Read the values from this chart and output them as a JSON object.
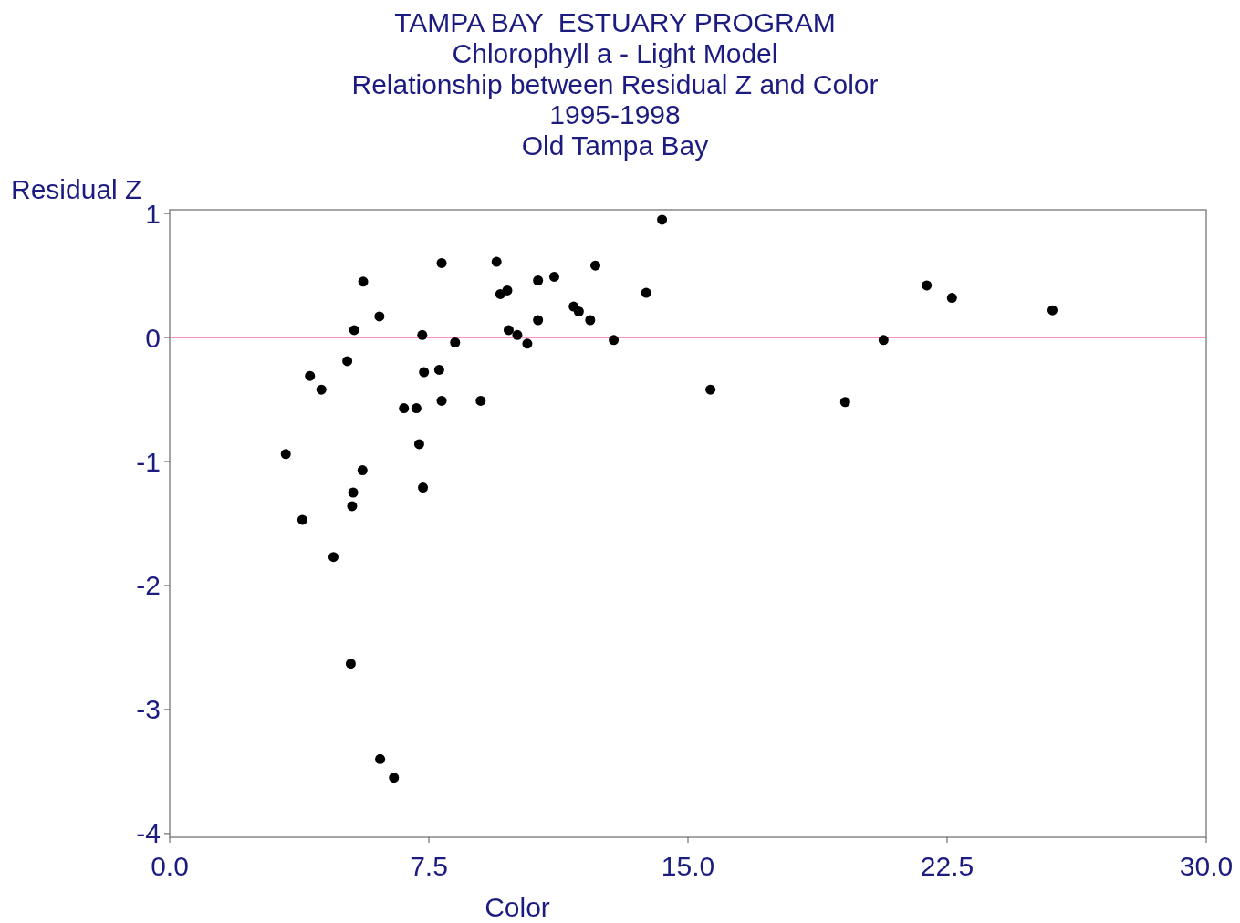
{
  "chart_data": {
    "type": "scatter",
    "title": "TAMPA BAY  ESTUARY PROGRAM",
    "subtitle": "Chlorophyll a - Light Model\nRelationship between Residual Z and Color\n1995-1998\nOld Tampa Bay",
    "xlabel": "Color",
    "ylabel": "Residual Z",
    "x": [
      14.25,
      7.87,
      9.46,
      5.6,
      12.32,
      10.66,
      11.13,
      9.57,
      9.77,
      13.79,
      6.07,
      11.69,
      11.84,
      10.66,
      12.17,
      5.34,
      7.31,
      9.81,
      10.06,
      8.26,
      10.35,
      12.85,
      5.14,
      4.06,
      4.39,
      7.36,
      7.8,
      7.87,
      9.0,
      6.78,
      7.14,
      3.36,
      7.22,
      5.58,
      5.31,
      5.28,
      7.33,
      3.84,
      4.74,
      5.24,
      6.09,
      6.49,
      15.65,
      19.55,
      20.66,
      21.91,
      22.64,
      25.55
    ],
    "series": [
      {
        "color": "#000000",
        "values": [
          0.95,
          0.6,
          0.61,
          0.45,
          0.58,
          0.46,
          0.49,
          0.35,
          0.38,
          0.36,
          0.17,
          0.25,
          0.21,
          0.14,
          0.14,
          0.06,
          0.02,
          0.06,
          0.02,
          -0.04,
          -0.05,
          -0.02,
          -0.19,
          -0.31,
          -0.42,
          -0.28,
          -0.26,
          -0.51,
          -0.51,
          -0.57,
          -0.57,
          -0.94,
          -0.86,
          -1.07,
          -1.25,
          -1.36,
          -1.21,
          -1.47,
          -1.77,
          -2.63,
          -3.4,
          -3.55,
          -0.42,
          -0.52,
          -0.02,
          0.42,
          0.32,
          0.22
        ]
      }
    ],
    "xlim": [
      0,
      30
    ],
    "xticks": [
      {
        "value": 0,
        "label": "0.0"
      },
      7.5,
      {
        "value": 15,
        "label": "15.0"
      },
      22.5,
      {
        "value": 30,
        "label": "30.0"
      }
    ],
    "ylim": [
      -4.03,
      1.03
    ],
    "yticks": [
      -4,
      -3,
      -2,
      -1,
      0,
      1
    ],
    "ref_lines": [
      {
        "axis": "y",
        "value": 0,
        "color": "#ff69b4"
      }
    ],
    "marker": "circle",
    "grid": false
  }
}
